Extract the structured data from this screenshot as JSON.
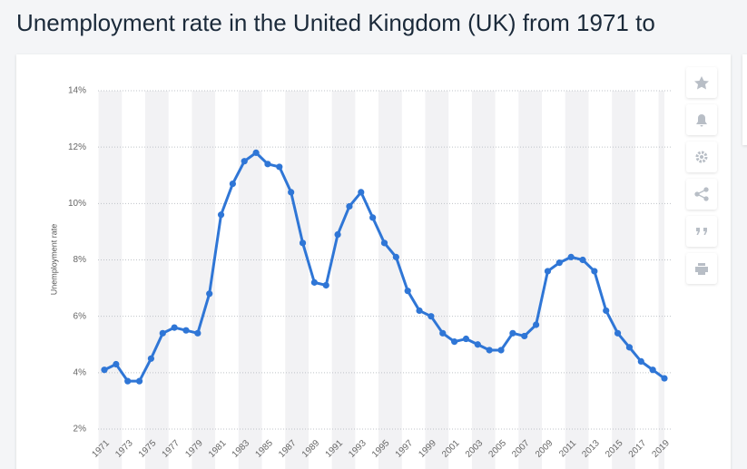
{
  "chart_data": {
    "type": "line",
    "title": "Unemployment rate in the United Kingdom (UK) from 1971 to",
    "y_label": "Unemployment rate",
    "categories": [
      "1971",
      null,
      "1973",
      null,
      "1975",
      null,
      "1977",
      null,
      "1979",
      null,
      "1981",
      null,
      "1983",
      null,
      "1985",
      null,
      "1987",
      null,
      "1989",
      null,
      "1991",
      null,
      "1993",
      null,
      "1995",
      null,
      "1997",
      null,
      "1999",
      null,
      "2001",
      null,
      "2003",
      null,
      "2005",
      null,
      "2007",
      null,
      "2009",
      null,
      "2011",
      null,
      "2013",
      null,
      "2015",
      null,
      "2017",
      null,
      "2019"
    ],
    "series": [
      {
        "name": "Unemployment rate",
        "color": "#2f76d6",
        "values": [
          4.1,
          4.3,
          3.7,
          3.7,
          4.5,
          5.4,
          5.6,
          5.5,
          5.4,
          6.8,
          9.6,
          10.7,
          11.5,
          11.8,
          11.4,
          11.3,
          10.4,
          8.6,
          7.2,
          7.1,
          8.9,
          9.9,
          10.4,
          9.5,
          8.6,
          8.1,
          6.9,
          6.2,
          6.0,
          5.4,
          5.1,
          5.2,
          5.0,
          4.8,
          4.8,
          5.4,
          5.3,
          5.7,
          7.6,
          7.9,
          8.1,
          8.0,
          7.6,
          6.2,
          5.4,
          4.9,
          4.4,
          4.1,
          3.8
        ]
      }
    ],
    "ylim": [
      2,
      14
    ],
    "yticks": [
      {
        "value": 2,
        "label": "2%"
      },
      {
        "value": 4,
        "label": "4%"
      },
      {
        "value": 6,
        "label": "6%"
      },
      {
        "value": 8,
        "label": "8%"
      },
      {
        "value": 10,
        "label": "10%"
      },
      {
        "value": 12,
        "label": "12%"
      },
      {
        "value": 14,
        "label": "14%"
      }
    ],
    "grid": true
  }
}
